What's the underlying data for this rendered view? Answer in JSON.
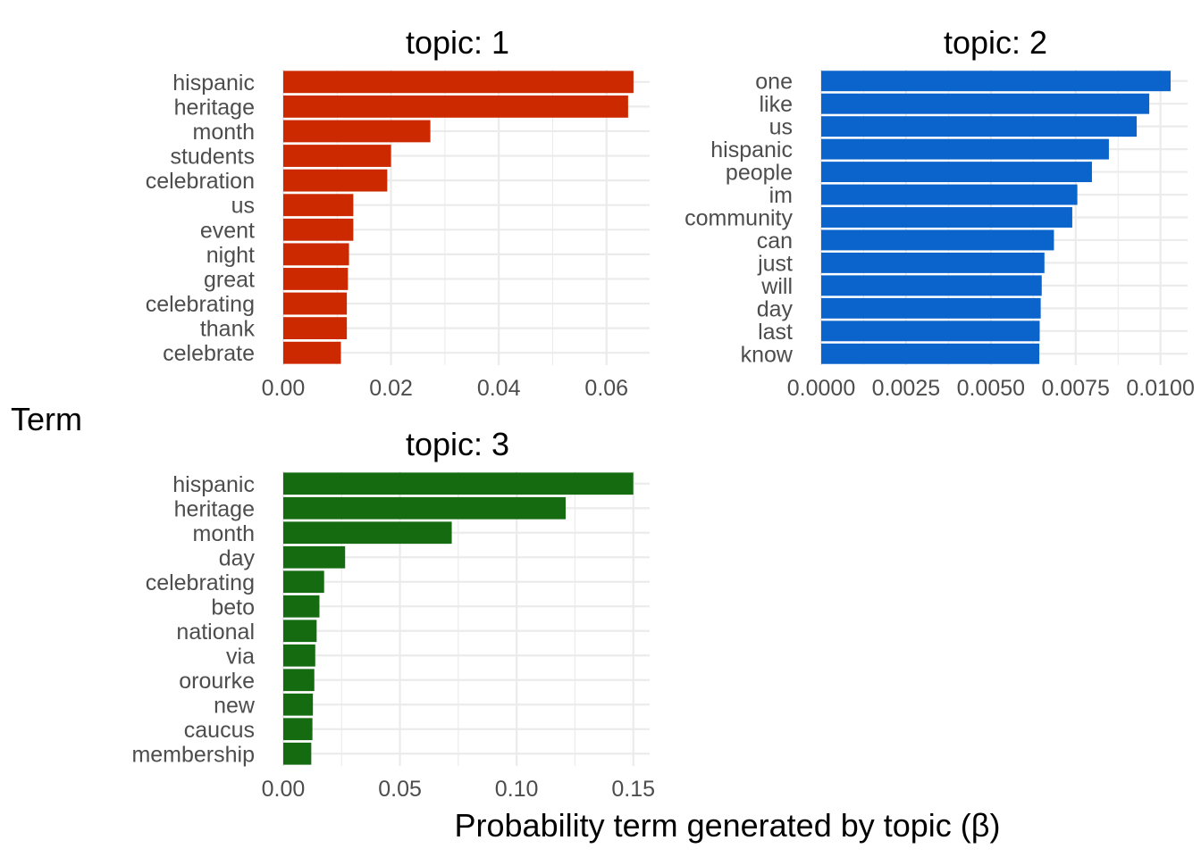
{
  "chart_data": {
    "type": "bar",
    "orientation": "horizontal",
    "xlabel": "Probability term generated by topic (β)",
    "ylabel": "Term",
    "panels": [
      {
        "title": "topic: 1",
        "color": "#cc2900",
        "xlim": [
          0,
          0.068
        ],
        "ticks": [
          0,
          0.02,
          0.04,
          0.06
        ],
        "tick_labels": [
          "0.00",
          "0.02",
          "0.04",
          "0.06"
        ],
        "categories": [
          "hispanic",
          "heritage",
          "month",
          "students",
          "celebration",
          "us",
          "event",
          "night",
          "great",
          "celebrating",
          "thank",
          "celebrate"
        ],
        "values": [
          0.065,
          0.064,
          0.0273,
          0.02,
          0.0193,
          0.013,
          0.013,
          0.0122,
          0.012,
          0.0118,
          0.0118,
          0.0107
        ]
      },
      {
        "title": "topic: 2",
        "color": "#0a64cc",
        "xlim": [
          0,
          0.0108
        ],
        "ticks": [
          0,
          0.0025,
          0.005,
          0.0075,
          0.01
        ],
        "tick_labels": [
          "0.0000",
          "0.0025",
          "0.0050",
          "0.0075",
          "0.0100"
        ],
        "categories": [
          "one",
          "like",
          "us",
          "hispanic",
          "people",
          "im",
          "community",
          "can",
          "just",
          "will",
          "day",
          "last",
          "know"
        ],
        "values": [
          0.0103,
          0.00967,
          0.0093,
          0.00848,
          0.00798,
          0.00755,
          0.0074,
          0.00686,
          0.00658,
          0.0065,
          0.00647,
          0.00644,
          0.00643
        ]
      },
      {
        "title": "topic: 3",
        "color": "#146b10",
        "xlim": [
          0,
          0.157
        ],
        "ticks": [
          0,
          0.05,
          0.1,
          0.15
        ],
        "tick_labels": [
          "0.00",
          "0.05",
          "0.10",
          "0.15"
        ],
        "categories": [
          "hispanic",
          "heritage",
          "month",
          "day",
          "celebrating",
          "beto",
          "national",
          "via",
          "orourke",
          "new",
          "caucus",
          "membership"
        ],
        "values": [
          0.15,
          0.121,
          0.0722,
          0.0265,
          0.0175,
          0.0155,
          0.0143,
          0.0137,
          0.0133,
          0.0127,
          0.0125,
          0.012
        ]
      }
    ]
  }
}
